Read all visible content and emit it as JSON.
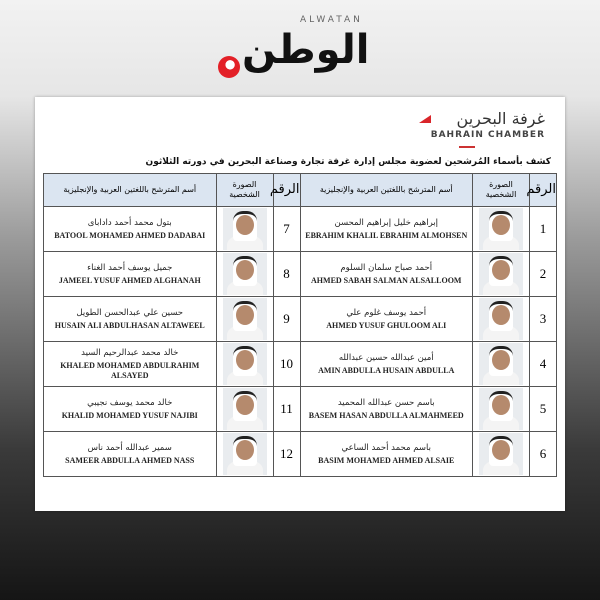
{
  "logo": {
    "latin": "ALWATAN",
    "arabic": "الوطن"
  },
  "document": {
    "org_arabic": "غرفة البحرين",
    "org_english": "BAHRAIN CHAMBER",
    "title": "كشف بأسماء المُرشحين لعضوية مجلس إدارة غرفة تجارة وصناعة البحرين في دورته الثلاثون",
    "headers": {
      "number": "الرقم",
      "photo": "الصورة الشخصية",
      "name": "أسم المترشح باللغتين العربية والإنجليزية"
    },
    "rows": [
      [
        {
          "n": "1",
          "ar": "إبراهيم خليل إبراهيم المحسن",
          "en": "EBRAHIM KHALIL EBRAHIM ALMOHSEN"
        },
        {
          "n": "7",
          "ar": "بتول محمد أحمد دادابای",
          "en": "BATOOL MOHAMED AHMED DADABAI"
        }
      ],
      [
        {
          "n": "2",
          "ar": "أحمد صباح سلمان السلوم",
          "en": "AHMED SABAH SALMAN ALSALLOOM"
        },
        {
          "n": "8",
          "ar": "جميل يوسف أحمد الغناء",
          "en": "JAMEEL YUSUF AHMED ALGHANAH"
        }
      ],
      [
        {
          "n": "3",
          "ar": "أحمد يوسف غلوم علي",
          "en": "AHMED YUSUF GHULOOM ALI"
        },
        {
          "n": "9",
          "ar": "حسين علي عبدالحسن الطويل",
          "en": "HUSAIN ALI ABDULHASAN ALTAWEEL"
        }
      ],
      [
        {
          "n": "4",
          "ar": "أمين عبدالله حسين عبدالله",
          "en": "AMIN ABDULLA HUSAIN ABDULLA"
        },
        {
          "n": "10",
          "ar": "خالد محمد عبدالرحيم السيد",
          "en": "KHALED MOHAMED ABDULRAHIM ALSAYED"
        }
      ],
      [
        {
          "n": "5",
          "ar": "باسم حسن عبدالله المحميد",
          "en": "BASEM HASAN ABDULLA ALMAHMEED"
        },
        {
          "n": "11",
          "ar": "خالد محمد يوسف نجيبي",
          "en": "KHALID MOHAMED YUSUF NAJIBI"
        }
      ],
      [
        {
          "n": "6",
          "ar": "باسم محمد أحمد الساعي",
          "en": "BASIM MOHAMED AHMED ALSAIE"
        },
        {
          "n": "12",
          "ar": "سمير عبدالله أحمد ناس",
          "en": "SAMEER ABDULLA AHMED NASS"
        }
      ]
    ]
  }
}
